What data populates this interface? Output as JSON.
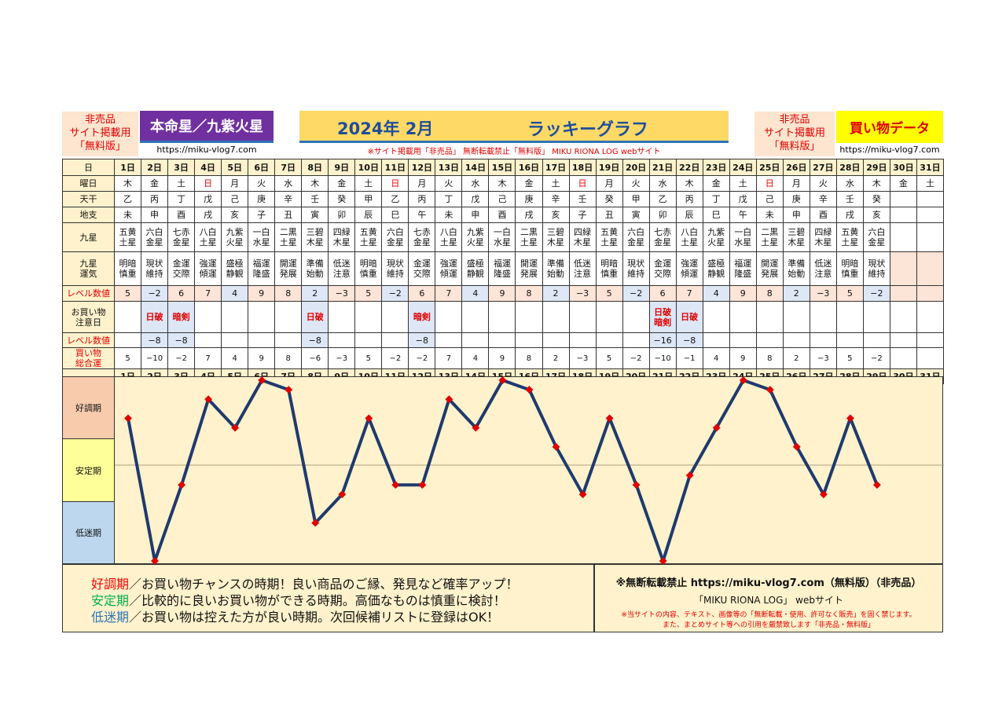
{
  "header": {
    "left_note": [
      "非売品",
      "サイト掲載用",
      "「無料版」"
    ],
    "honmei": "本命星／九紫火星",
    "url_left": "https://miku-vlog7.com",
    "year_month": "2024年 2月",
    "lucky_graph": "ラッキーグラフ",
    "notice": "※サイト掲載用「非売品」 無断転載禁止「無料版」 MIKU RIONA LOG webサイト",
    "right_note": [
      "非売品",
      "サイト掲載用",
      "「無料版」"
    ],
    "kaimono": "買い物データ",
    "url_right": "https://miku-vlog7.com"
  },
  "row_labels": {
    "day": "日",
    "weekday": "曜日",
    "tenkan": "天干",
    "chishi": "地支",
    "kyusei": "九星",
    "unki": [
      "九星",
      "運気"
    ],
    "level1": "レベル数値",
    "caution": [
      "お買い物",
      "注意日"
    ],
    "level2": "レベル数値",
    "total": [
      "買い物",
      "総合運"
    ]
  },
  "days": [
    "1日",
    "2日",
    "3日",
    "4日",
    "5日",
    "6日",
    "7日",
    "8日",
    "9日",
    "10日",
    "11日",
    "12日",
    "13日",
    "14日",
    "15日",
    "16日",
    "17日",
    "18日",
    "19日",
    "20日",
    "21日",
    "22日",
    "23日",
    "24日",
    "25日",
    "26日",
    "27日",
    "28日",
    "29日",
    "30日",
    "31日"
  ],
  "weekdays": [
    "木",
    "金",
    "土",
    "日",
    "月",
    "火",
    "水",
    "木",
    "金",
    "土",
    "日",
    "月",
    "火",
    "水",
    "木",
    "金",
    "土",
    "日",
    "月",
    "火",
    "水",
    "木",
    "金",
    "土",
    "日",
    "月",
    "火",
    "水",
    "木",
    "金",
    "土"
  ],
  "tenkan": [
    "乙",
    "丙",
    "丁",
    "戊",
    "己",
    "庚",
    "辛",
    "壬",
    "癸",
    "甲",
    "乙",
    "丙",
    "丁",
    "戊",
    "己",
    "庚",
    "辛",
    "壬",
    "癸",
    "甲",
    "乙",
    "丙",
    "丁",
    "戊",
    "己",
    "庚",
    "辛",
    "壬",
    "癸",
    "",
    ""
  ],
  "chishi": [
    "未",
    "申",
    "酉",
    "戌",
    "亥",
    "子",
    "丑",
    "寅",
    "卯",
    "辰",
    "巳",
    "午",
    "未",
    "申",
    "酉",
    "戌",
    "亥",
    "子",
    "丑",
    "寅",
    "卯",
    "辰",
    "巳",
    "午",
    "未",
    "申",
    "酉",
    "戌",
    "亥",
    "",
    ""
  ],
  "kyusei": [
    [
      "五黄",
      "土星"
    ],
    [
      "六白",
      "金星"
    ],
    [
      "七赤",
      "金星"
    ],
    [
      "八白",
      "土星"
    ],
    [
      "九紫",
      "火星"
    ],
    [
      "一白",
      "水星"
    ],
    [
      "二黒",
      "土星"
    ],
    [
      "三碧",
      "木星"
    ],
    [
      "四緑",
      "木星"
    ],
    [
      "五黄",
      "土星"
    ],
    [
      "六白",
      "金星"
    ],
    [
      "七赤",
      "金星"
    ],
    [
      "八白",
      "土星"
    ],
    [
      "九紫",
      "火星"
    ],
    [
      "一白",
      "水星"
    ],
    [
      "二黒",
      "土星"
    ],
    [
      "三碧",
      "木星"
    ],
    [
      "四緑",
      "木星"
    ],
    [
      "五黄",
      "土星"
    ],
    [
      "六白",
      "金星"
    ],
    [
      "七赤",
      "金星"
    ],
    [
      "八白",
      "土星"
    ],
    [
      "九紫",
      "火星"
    ],
    [
      "一白",
      "水星"
    ],
    [
      "二黒",
      "土星"
    ],
    [
      "三碧",
      "木星"
    ],
    [
      "四緑",
      "木星"
    ],
    [
      "五黄",
      "土星"
    ],
    [
      "六白",
      "金星"
    ],
    [
      "",
      ""
    ],
    [
      "",
      ""
    ]
  ],
  "unki": [
    [
      "明暗",
      "慎重"
    ],
    [
      "現状",
      "維持"
    ],
    [
      "金運",
      "交際"
    ],
    [
      "強運",
      "傾運"
    ],
    [
      "盛極",
      "静観"
    ],
    [
      "福運",
      "隆盛"
    ],
    [
      "開運",
      "発展"
    ],
    [
      "準備",
      "始動"
    ],
    [
      "低迷",
      "注意"
    ],
    [
      "明暗",
      "慎重"
    ],
    [
      "現状",
      "維持"
    ],
    [
      "金運",
      "交際"
    ],
    [
      "強運",
      "傾運"
    ],
    [
      "盛極",
      "静観"
    ],
    [
      "福運",
      "隆盛"
    ],
    [
      "開運",
      "発展"
    ],
    [
      "準備",
      "始動"
    ],
    [
      "低迷",
      "注意"
    ],
    [
      "明暗",
      "慎重"
    ],
    [
      "現状",
      "維持"
    ],
    [
      "金運",
      "交際"
    ],
    [
      "強運",
      "傾運"
    ],
    [
      "盛極",
      "静観"
    ],
    [
      "福運",
      "隆盛"
    ],
    [
      "開運",
      "発展"
    ],
    [
      "準備",
      "始動"
    ],
    [
      "低迷",
      "注意"
    ],
    [
      "明暗",
      "慎重"
    ],
    [
      "現状",
      "維持"
    ],
    [
      "",
      ""
    ],
    [
      "",
      ""
    ]
  ],
  "level1": [
    "5",
    "−2",
    "6",
    "7",
    "4",
    "9",
    "8",
    "2",
    "−3",
    "5",
    "−2",
    "6",
    "7",
    "4",
    "9",
    "8",
    "2",
    "−3",
    "5",
    "−2",
    "6",
    "7",
    "4",
    "9",
    "8",
    "2",
    "−3",
    "5",
    "−2",
    "",
    ""
  ],
  "caution": [
    [],
    [
      "日破"
    ],
    [
      "暗剣"
    ],
    [],
    [],
    [],
    [],
    [
      "日破"
    ],
    [],
    [],
    [],
    [
      "暗剣"
    ],
    [],
    [],
    [],
    [],
    [],
    [],
    [],
    [],
    [
      "日破",
      "暗剣"
    ],
    [
      "日破"
    ],
    [],
    [],
    [],
    [],
    [],
    [],
    [],
    [],
    []
  ],
  "level2": [
    "",
    "−8",
    "−8",
    "",
    "",
    "",
    "",
    "−8",
    "",
    "",
    "",
    "−8",
    "",
    "",
    "",
    "",
    "",
    "",
    "",
    "",
    "−16",
    "−8",
    "",
    "",
    "",
    "",
    "",
    "",
    "",
    "",
    ""
  ],
  "total": [
    "5",
    "−10",
    "−2",
    "7",
    "4",
    "9",
    "8",
    "−6",
    "−3",
    "5",
    "−2",
    "−2",
    "7",
    "4",
    "9",
    "8",
    "2",
    "−3",
    "5",
    "−2",
    "−10",
    "−1",
    "4",
    "9",
    "8",
    "2",
    "−3",
    "5",
    "−2",
    "",
    ""
  ],
  "bands": [
    "好調期",
    "安定期",
    "低迷期"
  ],
  "legend": [
    {
      "term": "好調期",
      "text": "／お買い物チャンスの時期！良い商品のご縁、発見など確率アップ！",
      "color": "#ff0000"
    },
    {
      "term": "安定期",
      "text": "／比較的に良いお買い物ができる時期。高価なものは慎重に検討！",
      "color": "#00b050"
    },
    {
      "term": "低迷期",
      "text": "／お買い物は控えた方が良い時期。次回候補リストに登録はOK！",
      "color": "#2e75b6"
    }
  ],
  "copyright": {
    "line1": "※無断転載禁止 https://miku-vlog7.com（無料版）（非売品）",
    "line2": "「MIKU RIONA LOG」 webサイト",
    "line3": "※当サイトの内容、テキスト、画像等の「無断転載・使用、許可なく販売」を固く禁じます。",
    "line4": "また、まとめサイト等への引用を厳禁致します「非売品・無料版」"
  },
  "colors": {
    "line": "#1f3a6e",
    "marker": "#e00000",
    "good": "#f8cbad",
    "stable": "#ffff99",
    "bad": "#bdd7ee",
    "accent_red": "#e00000",
    "sunday": "#e00000"
  },
  "chart_data": {
    "type": "line",
    "title": "ラッキーグラフ",
    "categories": [
      "1日",
      "2日",
      "3日",
      "4日",
      "5日",
      "6日",
      "7日",
      "8日",
      "9日",
      "10日",
      "11日",
      "12日",
      "13日",
      "14日",
      "15日",
      "16日",
      "17日",
      "18日",
      "19日",
      "20日",
      "21日",
      "22日",
      "23日",
      "24日",
      "25日",
      "26日",
      "27日",
      "28日",
      "29日"
    ],
    "series": [
      {
        "values": [
          5,
          -10,
          -2,
          7,
          4,
          9,
          8,
          -6,
          -3,
          5,
          -2,
          -2,
          7,
          4,
          9,
          8,
          2,
          -3,
          5,
          -2,
          -10,
          -1,
          4,
          9,
          8,
          2,
          -3,
          5,
          -2
        ]
      }
    ],
    "ylim": [
      -10,
      9
    ],
    "bands": [
      "好調期",
      "安定期",
      "低迷期"
    ],
    "grid": false
  }
}
